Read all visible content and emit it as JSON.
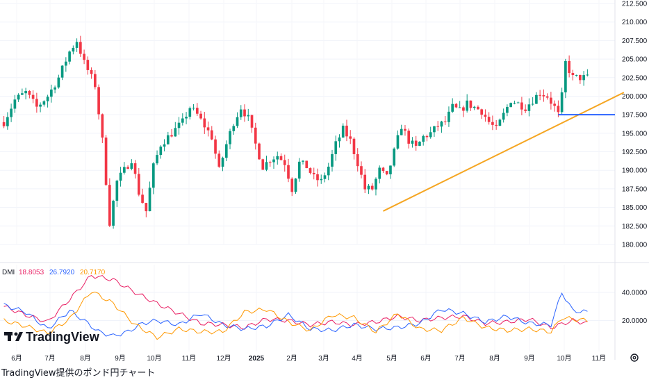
{
  "chart_data": [
    {
      "type": "candlestick",
      "title": "",
      "ylim": [
        180.0,
        212.5
      ],
      "y_ticks": [
        "212.500",
        "210.000",
        "207.500",
        "205.000",
        "202.500",
        "200.000",
        "197.500",
        "195.000",
        "192.500",
        "190.000",
        "187.500",
        "185.000",
        "182.500",
        "180.000"
      ],
      "x_ticks": [
        "6月",
        "7月",
        "8月",
        "9月",
        "10月",
        "11月",
        "12月",
        "2025",
        "2月",
        "3月",
        "4月",
        "5月",
        "6月",
        "7月",
        "8月",
        "9月",
        "10月",
        "11月"
      ],
      "up_color": "#089981",
      "down_color": "#f23645",
      "anchors": [
        [
          0,
          196.5
        ],
        [
          3,
          199.5
        ],
        [
          6,
          200.5
        ],
        [
          9,
          198.5
        ],
        [
          12,
          200.0
        ],
        [
          15,
          202.5
        ],
        [
          18,
          206.0
        ],
        [
          20,
          207.5
        ],
        [
          22,
          204.5
        ],
        [
          25,
          201.5
        ],
        [
          27,
          194.0
        ],
        [
          29,
          183.0
        ],
        [
          31,
          188.5
        ],
        [
          33,
          190.0
        ],
        [
          35,
          191.5
        ],
        [
          37,
          187.0
        ],
        [
          39,
          184.5
        ],
        [
          41,
          190.5
        ],
        [
          43,
          193.5
        ],
        [
          45,
          194.5
        ],
        [
          47,
          195.5
        ],
        [
          49,
          196.5
        ],
        [
          51,
          198.5
        ],
        [
          53,
          197.5
        ],
        [
          55,
          196.0
        ],
        [
          57,
          194.5
        ],
        [
          59,
          190.0
        ],
        [
          61,
          193.5
        ],
        [
          63,
          196.5
        ],
        [
          65,
          198.5
        ],
        [
          67,
          197.0
        ],
        [
          69,
          193.5
        ],
        [
          71,
          190.5
        ],
        [
          73,
          191.5
        ],
        [
          75,
          192.0
        ],
        [
          77,
          191.0
        ],
        [
          79,
          187.5
        ],
        [
          81,
          191.0
        ],
        [
          83,
          190.5
        ],
        [
          85,
          189.0
        ],
        [
          87,
          188.5
        ],
        [
          89,
          190.5
        ],
        [
          91,
          193.5
        ],
        [
          93,
          195.5
        ],
        [
          95,
          194.0
        ],
        [
          97,
          191.0
        ],
        [
          99,
          187.5
        ],
        [
          101,
          187.5
        ],
        [
          103,
          190.0
        ],
        [
          105,
          189.0
        ],
        [
          107,
          192.5
        ],
        [
          109,
          196.0
        ],
        [
          111,
          194.0
        ],
        [
          113,
          193.0
        ],
        [
          115,
          194.5
        ],
        [
          117,
          195.0
        ],
        [
          119,
          196.0
        ],
        [
          121,
          196.5
        ],
        [
          123,
          198.5
        ],
        [
          125,
          198.0
        ],
        [
          127,
          199.0
        ],
        [
          129,
          198.5
        ],
        [
          131,
          198.0
        ],
        [
          133,
          196.5
        ],
        [
          135,
          195.5
        ],
        [
          137,
          197.5
        ],
        [
          139,
          199.5
        ],
        [
          141,
          199.0
        ],
        [
          143,
          198.5
        ],
        [
          145,
          199.5
        ],
        [
          147,
          200.5
        ],
        [
          149,
          200.0
        ],
        [
          151,
          198.5
        ],
        [
          152,
          197.5
        ],
        [
          153,
          200.0
        ],
        [
          154,
          204.5
        ],
        [
          156,
          202.5
        ],
        [
          158,
          202.5
        ]
      ],
      "trendline": {
        "from": [
          104,
          184.5
        ],
        "to": [
          170,
          200.5
        ],
        "color": "#f5a623"
      },
      "horizontal_line": {
        "from_index": 152,
        "level": 197.5,
        "color": "#2962ff"
      }
    },
    {
      "type": "line",
      "title": "DMI",
      "indicator_label": "DMI",
      "ylim": [
        0,
        60
      ],
      "y_ticks": [
        "40.0000",
        "20.0000"
      ],
      "series": [
        {
          "name": "",
          "value_label": "18.8053",
          "color": "#e91e63",
          "anchors": [
            [
              0,
              30
            ],
            [
              6,
              24
            ],
            [
              12,
              19
            ],
            [
              18,
              35
            ],
            [
              24,
              52
            ],
            [
              30,
              49
            ],
            [
              36,
              40
            ],
            [
              42,
              32
            ],
            [
              48,
              25
            ],
            [
              54,
              18
            ],
            [
              60,
              17
            ],
            [
              66,
              15
            ],
            [
              72,
              21
            ],
            [
              78,
              20
            ],
            [
              84,
              17
            ],
            [
              90,
              19
            ],
            [
              96,
              17
            ],
            [
              102,
              19
            ],
            [
              108,
              23
            ],
            [
              114,
              20
            ],
            [
              120,
              22
            ],
            [
              126,
              23
            ],
            [
              132,
              18
            ],
            [
              138,
              19
            ],
            [
              144,
              21
            ],
            [
              150,
              15
            ],
            [
              156,
              20
            ],
            [
              160,
              18
            ]
          ]
        },
        {
          "name": "",
          "value_label": "26.7920",
          "color": "#2962ff",
          "anchors": [
            [
              0,
              31
            ],
            [
              6,
              26
            ],
            [
              12,
              14
            ],
            [
              18,
              27
            ],
            [
              22,
              20
            ],
            [
              26,
              12
            ],
            [
              30,
              9
            ],
            [
              34,
              12
            ],
            [
              38,
              18
            ],
            [
              42,
              20
            ],
            [
              48,
              17
            ],
            [
              54,
              25
            ],
            [
              60,
              17
            ],
            [
              66,
              14
            ],
            [
              72,
              16
            ],
            [
              78,
              24
            ],
            [
              84,
              14
            ],
            [
              90,
              13
            ],
            [
              96,
              17
            ],
            [
              102,
              14
            ],
            [
              108,
              15
            ],
            [
              114,
              18
            ],
            [
              120,
              28
            ],
            [
              126,
              25
            ],
            [
              132,
              19
            ],
            [
              138,
              23
            ],
            [
              144,
              18
            ],
            [
              150,
              17
            ],
            [
              153,
              40
            ],
            [
              156,
              27
            ],
            [
              160,
              26
            ]
          ]
        },
        {
          "name": "",
          "value_label": "20.7170",
          "color": "#ff9800",
          "anchors": [
            [
              0,
              20
            ],
            [
              6,
              16
            ],
            [
              12,
              11
            ],
            [
              18,
              21
            ],
            [
              24,
              41
            ],
            [
              30,
              32
            ],
            [
              36,
              17
            ],
            [
              42,
              8
            ],
            [
              48,
              14
            ],
            [
              54,
              12
            ],
            [
              60,
              12
            ],
            [
              66,
              26
            ],
            [
              72,
              28
            ],
            [
              78,
              19
            ],
            [
              84,
              13
            ],
            [
              90,
              24
            ],
            [
              96,
              22
            ],
            [
              102,
              12
            ],
            [
              108,
              25
            ],
            [
              114,
              14
            ],
            [
              120,
              13
            ],
            [
              126,
              22
            ],
            [
              132,
              15
            ],
            [
              138,
              13
            ],
            [
              144,
              14
            ],
            [
              150,
              12
            ],
            [
              153,
              22
            ],
            [
              156,
              21
            ],
            [
              160,
              20
            ]
          ]
        }
      ]
    }
  ],
  "brand": {
    "name": "TradingView"
  },
  "caption": "TradingView提供のポンド円チャート",
  "icons": {
    "settings": "gear-icon"
  }
}
